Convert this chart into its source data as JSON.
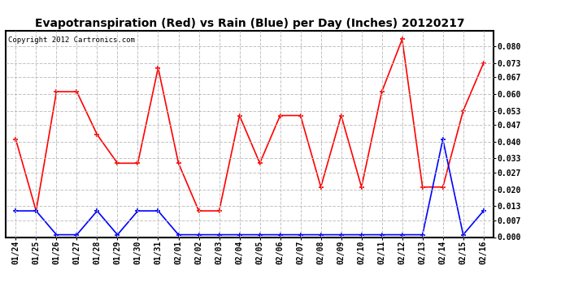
{
  "title": "Evapotranspiration (Red) vs Rain (Blue) per Day (Inches) 20120217",
  "copyright": "Copyright 2012 Cartronics.com",
  "dates": [
    "01/24",
    "01/25",
    "01/26",
    "01/27",
    "01/28",
    "01/29",
    "01/30",
    "01/31",
    "02/01",
    "02/02",
    "02/03",
    "02/04",
    "02/05",
    "02/06",
    "02/07",
    "02/08",
    "02/09",
    "02/10",
    "02/11",
    "02/12",
    "02/13",
    "02/14",
    "02/15",
    "02/16"
  ],
  "et_values": [
    0.041,
    0.011,
    0.061,
    0.061,
    0.043,
    0.031,
    0.031,
    0.071,
    0.031,
    0.011,
    0.011,
    0.051,
    0.031,
    0.051,
    0.051,
    0.021,
    0.051,
    0.021,
    0.061,
    0.083,
    0.021,
    0.021,
    0.053,
    0.073
  ],
  "rain_values": [
    0.011,
    0.011,
    0.001,
    0.001,
    0.011,
    0.001,
    0.011,
    0.011,
    0.001,
    0.001,
    0.001,
    0.001,
    0.001,
    0.001,
    0.001,
    0.001,
    0.001,
    0.001,
    0.001,
    0.001,
    0.001,
    0.041,
    0.001,
    0.011
  ],
  "et_color": "red",
  "rain_color": "blue",
  "ylim_max": 0.0867,
  "yticks": [
    0.0,
    0.007,
    0.013,
    0.02,
    0.027,
    0.033,
    0.04,
    0.047,
    0.053,
    0.06,
    0.067,
    0.073,
    0.08
  ],
  "bg_color": "white",
  "grid_color": "#bbbbbb",
  "title_fontsize": 10,
  "copyright_fontsize": 6.5,
  "tick_fontsize": 7
}
